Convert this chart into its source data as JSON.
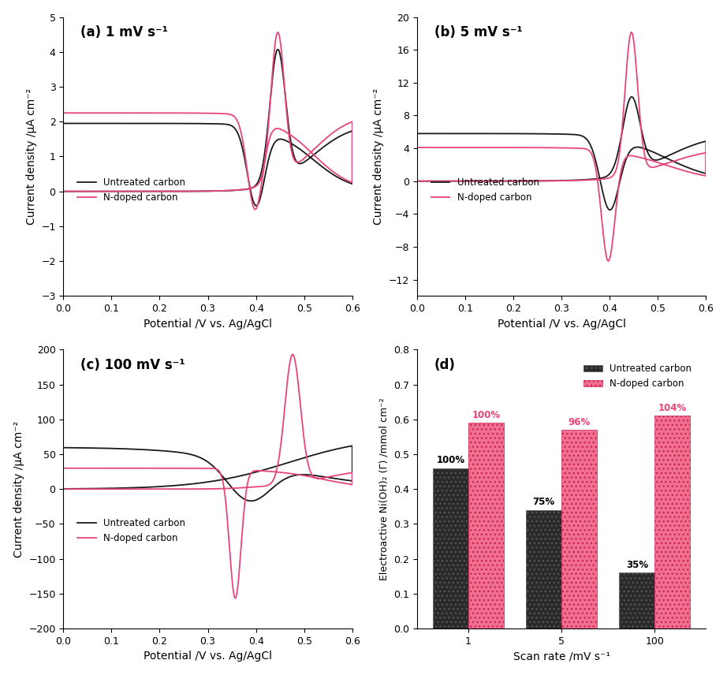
{
  "panel_a_title": "(a) 1 mV s⁻¹",
  "panel_b_title": "(b) 5 mV s⁻¹",
  "panel_c_title": "(c) 100 mV s⁻¹",
  "panel_d_title": "(d)",
  "xlabel_cv": "Potential /V vs. Ag/AgCl",
  "ylabel_cv": "Current density /μA cm⁻²",
  "ylabel_d": "Electroactive Ni(OH)₂ (Γ) /mmol cm⁻²",
  "xlabel_d": "Scan rate /mV s⁻¹",
  "color_black": "#1a1a1a",
  "color_pink": "#e8457a",
  "legend_untreated": "Untreated carbon",
  "legend_ndoped": "N-doped carbon",
  "panel_a_ylim": [
    -3,
    5
  ],
  "panel_b_ylim": [
    -14,
    20
  ],
  "panel_c_ylim": [
    -200,
    200
  ],
  "panel_d_ylim": [
    0,
    0.8
  ],
  "xlim_cv": [
    0.0,
    0.6
  ],
  "bar_categories": [
    "1",
    "5",
    "100"
  ],
  "bar_untreated": [
    0.46,
    0.34,
    0.16
  ],
  "bar_ndoped": [
    0.59,
    0.57,
    0.61
  ],
  "bar_untreated_pct": [
    "100%",
    "75%",
    "35%"
  ],
  "bar_ndoped_pct": [
    "100%",
    "96%",
    "104%"
  ],
  "bar_color_untreated": "#2a2a2a",
  "bar_color_ndoped": "#f07090"
}
